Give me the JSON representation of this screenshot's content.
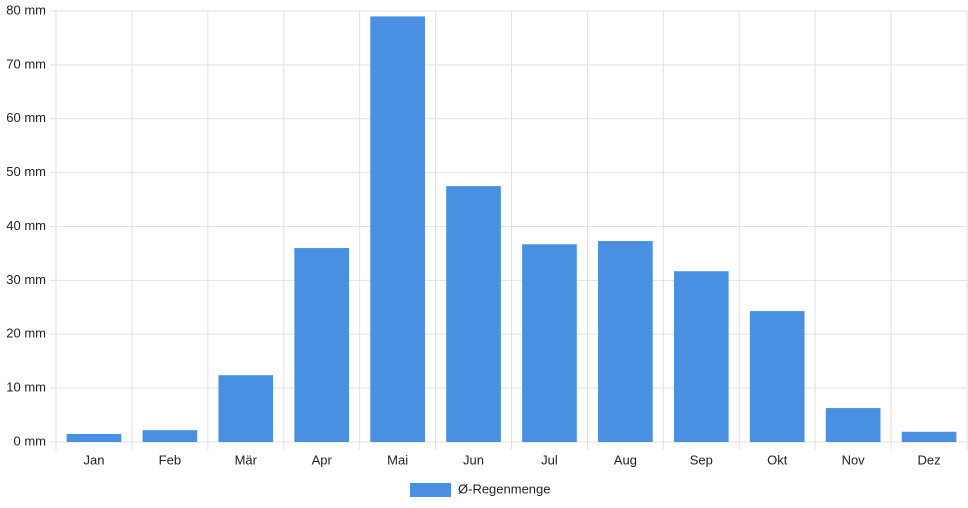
{
  "chart_data": {
    "type": "bar",
    "categories": [
      "Jan",
      "Feb",
      "Mär",
      "Apr",
      "Mai",
      "Jun",
      "Jul",
      "Aug",
      "Sep",
      "Okt",
      "Nov",
      "Dez"
    ],
    "series": [
      {
        "name": "Ø-Regenmenge",
        "color": "#4a90e2",
        "values": [
          1.5,
          2.2,
          12.4,
          36.0,
          79.0,
          47.5,
          36.7,
          37.3,
          31.7,
          24.3,
          6.3,
          1.9
        ]
      }
    ],
    "ylim": [
      0,
      80
    ],
    "yticks": [
      {
        "value": 0,
        "label": "0 mm"
      },
      {
        "value": 10,
        "label": "10 mm"
      },
      {
        "value": 20,
        "label": "20 mm"
      },
      {
        "value": 30,
        "label": "30 mm"
      },
      {
        "value": 40,
        "label": "40 mm"
      },
      {
        "value": 50,
        "label": "50 mm"
      },
      {
        "value": 60,
        "label": "60 mm"
      },
      {
        "value": 70,
        "label": "70 mm"
      },
      {
        "value": 80,
        "label": "80 mm"
      }
    ],
    "grid": true,
    "legend": "bottom"
  }
}
